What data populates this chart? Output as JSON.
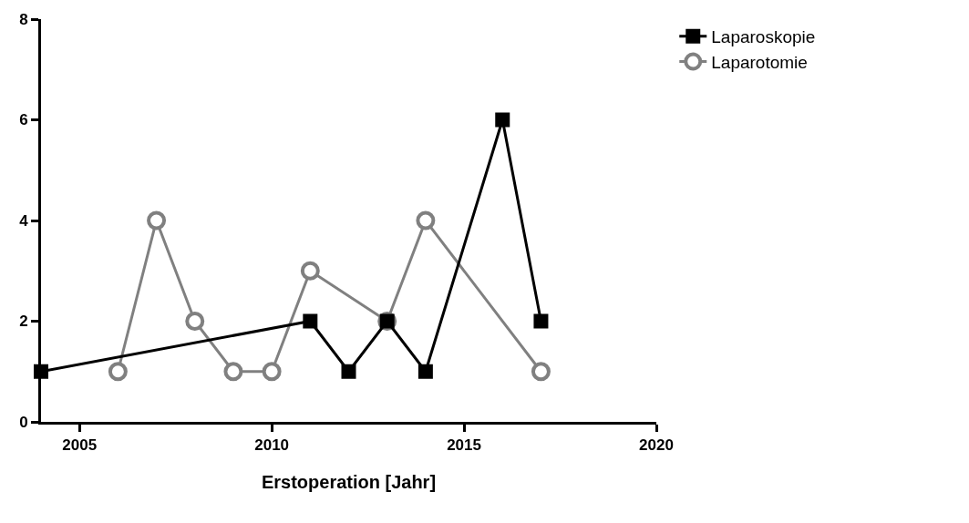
{
  "chart_data": {
    "type": "line",
    "xlabel": "Erstoperation [Jahr]",
    "series": [
      {
        "name": "Laparoskopie",
        "color": "#000000",
        "marker": "square",
        "x": [
          2004,
          2011,
          2012,
          2013,
          2014,
          2016,
          2017
        ],
        "values": [
          1,
          2,
          1,
          2,
          1,
          6,
          2
        ]
      },
      {
        "name": "Laparotomie",
        "color": "#808080",
        "marker": "circle",
        "x": [
          2006,
          2007,
          2008,
          2009,
          2010,
          2011,
          2013,
          2014,
          2017
        ],
        "values": [
          1,
          4,
          2,
          1,
          1,
          3,
          2,
          4,
          1
        ]
      }
    ],
    "xlim": [
      2004,
      2020
    ],
    "xticks": [
      2005,
      2010,
      2015,
      2020
    ],
    "ylim": [
      0,
      8
    ],
    "yticks": [
      0,
      2,
      4,
      6,
      8
    ],
    "legend": "top right",
    "line_style": "solid"
  }
}
